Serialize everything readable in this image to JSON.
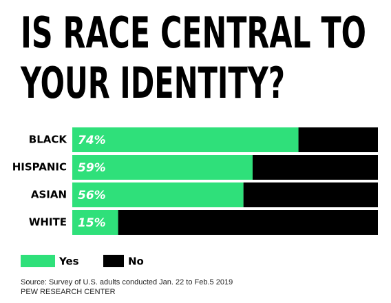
{
  "chart_data": {
    "type": "stacked-bar-horizontal",
    "title": [
      "IS RACE CENTRAL TO",
      "YOUR IDENTITY?"
    ],
    "categories": [
      "BLACK",
      "HISPANIC",
      "ASIAN",
      "WHITE"
    ],
    "series": [
      {
        "name": "Yes",
        "color": "#2fe07a",
        "values": [
          74,
          59,
          56,
          15
        ],
        "value_labels": [
          "74%",
          "59%",
          "56%",
          "15%"
        ]
      },
      {
        "name": "No",
        "color": "#000000",
        "values": [
          26,
          41,
          44,
          85
        ]
      }
    ],
    "xlim": [
      0,
      100
    ],
    "source": [
      "Source: Survey of U.S. adults conducted Jan. 22 to Feb.5 2019",
      "PEW RESEARCH CENTER"
    ]
  }
}
